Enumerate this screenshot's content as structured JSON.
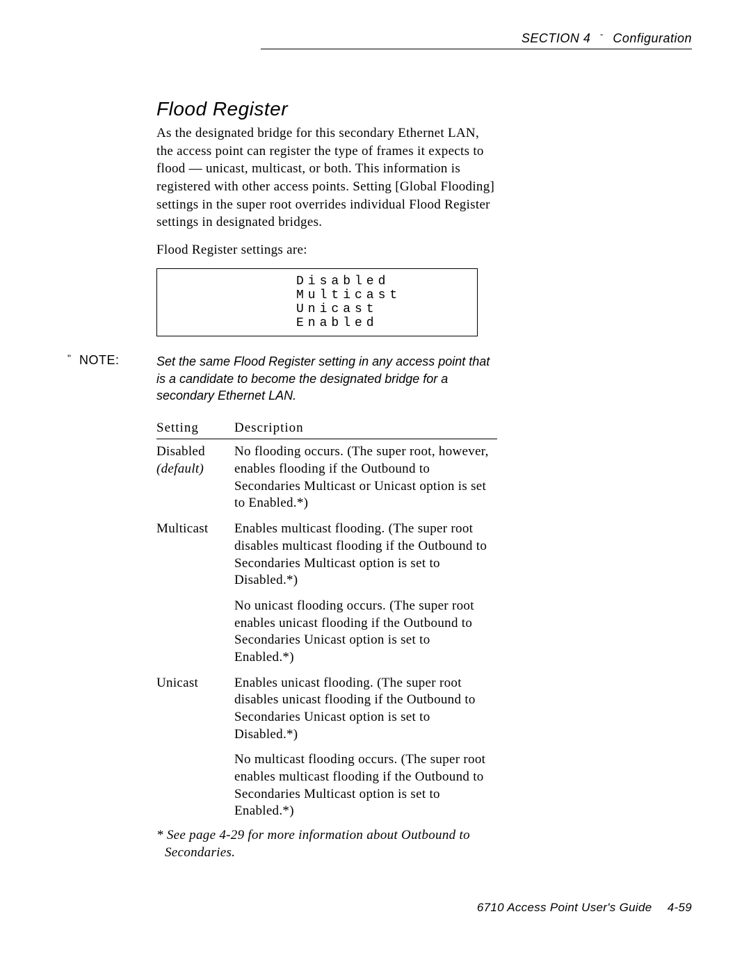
{
  "header": {
    "section": "SECTION 4",
    "bullet": "\"",
    "title": "Configuration"
  },
  "heading": "Flood Register",
  "intro_para": "As the designated bridge for this secondary Ethernet LAN, the access point can register the type of frames it expects to flood — unicast, multicast, or both.  This information is registered with other access points.  Setting [Global Flooding] settings in the super root overrides individual Flood Register settings in designated bridges.",
  "settings_label": "Flood Register settings are:",
  "options": {
    "o1": "Disabled",
    "o2": "Multicast",
    "o3": "Unicast",
    "o4": "Enabled"
  },
  "note": {
    "quote": "\"",
    "label": "NOTE:",
    "text": "Set the same Flood Register setting in any access point that is a candidate to become the designated bridge for a secondary Ethernet LAN."
  },
  "table": {
    "col1": "Setting",
    "col2": "Description",
    "rows": {
      "r1": {
        "setting": "Disabled",
        "setting_sub": "(default)",
        "desc": "No flooding occurs.  (The super root, however, enables flooding if the Outbound to Secondaries Multicast or Unicast option is set to Enabled.*)"
      },
      "r2": {
        "setting": "Multicast",
        "desc": "Enables multicast flooding.  (The super root disables multicast flooding if the Outbound to Secondaries Multicast option is set to Disabled.*)"
      },
      "r2b": {
        "desc": "No unicast flooding occurs.  (The super root enables unicast flooding if the Outbound to Secondaries Unicast option is set to Enabled.*)"
      },
      "r3": {
        "setting": "Unicast",
        "desc": "Enables unicast flooding.  (The super root disables unicast flooding if the Outbound to Secondaries Unicast option is set to Disabled.*)"
      },
      "r3b": {
        "desc": "No multicast flooding occurs.  (The super root enables multicast flooding if the Outbound to Secondaries Multicast option is set to Enabled.*)"
      }
    }
  },
  "footnote": "* See page 4-29 for more information about Outbound to Secondaries.",
  "footer": "6710 Access Point User's Guide  4-59"
}
